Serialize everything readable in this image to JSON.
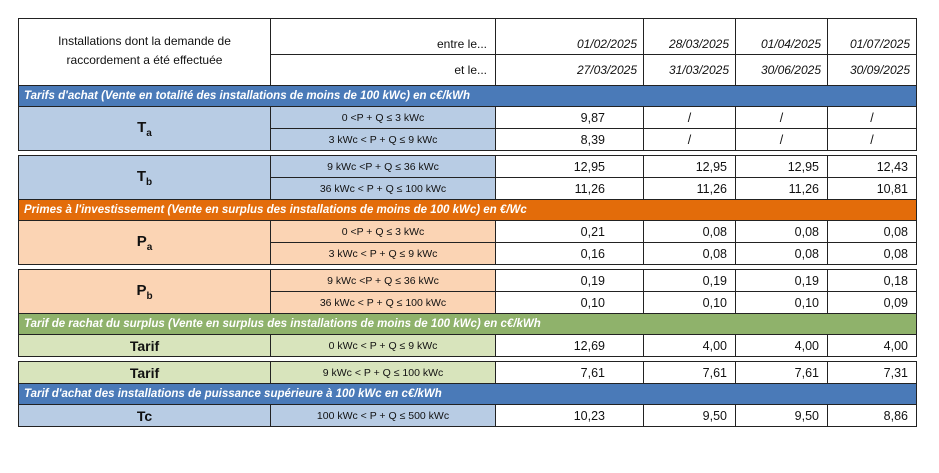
{
  "header": {
    "title": "Installations dont la demande de raccordement a été effectuée",
    "entre_label": "entre le...",
    "et_label": "et le...",
    "periods": [
      {
        "start": "01/02/2025",
        "end": "27/03/2025"
      },
      {
        "start": "28/03/2025",
        "end": "31/03/2025"
      },
      {
        "start": "01/04/2025",
        "end": "30/06/2025"
      },
      {
        "start": "01/07/2025",
        "end": "30/09/2025"
      }
    ]
  },
  "sections": {
    "tarifs_achat": "Tarifs d'achat (Vente en totalité des installations de moins de 100 kWc) en c€/kWh",
    "primes": "Primes à l'investissement (Vente en surplus des installations de moins de 100 kWc) en €/Wc",
    "rachat_surplus": "Tarif de rachat du surplus (Vente en surplus des installations de moins de 100 kWc) en c€/kWh",
    "achat_sup100": "Tarif d'achat des installations de puissance supérieure à 100 kWc en c€/kWh"
  },
  "groups": {
    "ta": {
      "label": "T",
      "sub": "a",
      "rows": [
        {
          "cond": "0 <P + Q ≤ 3 kWc",
          "values": [
            "9,87",
            "/",
            "/",
            "/"
          ]
        },
        {
          "cond": "3  kWc < P + Q ≤ 9 kWc",
          "values": [
            "8,39",
            "/",
            "/",
            "/"
          ]
        }
      ]
    },
    "tb": {
      "label": "T",
      "sub": "b",
      "rows": [
        {
          "cond": "9 kWc <P + Q ≤ 36 kWc",
          "values": [
            "12,95",
            "12,95",
            "12,95",
            "12,43"
          ]
        },
        {
          "cond": "36 kWc < P + Q ≤ 100 kWc",
          "values": [
            "11,26",
            "11,26",
            "11,26",
            "10,81"
          ]
        }
      ]
    },
    "pa": {
      "label": "P",
      "sub": "a",
      "rows": [
        {
          "cond": "0 <P + Q ≤ 3 kWc",
          "values": [
            "0,21",
            "0,08",
            "0,08",
            "0,08"
          ]
        },
        {
          "cond": "3  kWc < P + Q ≤ 9 kWc",
          "values": [
            "0,16",
            "0,08",
            "0,08",
            "0,08"
          ]
        }
      ]
    },
    "pb": {
      "label": "P",
      "sub": "b",
      "rows": [
        {
          "cond": "9 kWc <P + Q ≤ 36 kWc",
          "values": [
            "0,19",
            "0,19",
            "0,19",
            "0,18"
          ]
        },
        {
          "cond": "36 kWc < P + Q ≤ 100 kWc",
          "values": [
            "0,10",
            "0,10",
            "0,10",
            "0,09"
          ]
        }
      ]
    },
    "tarif1": {
      "label": "Tarif",
      "rows": [
        {
          "cond": "0 kWc < P + Q ≤ 9 kWc",
          "values": [
            "12,69",
            "4,00",
            "4,00",
            "4,00"
          ]
        }
      ]
    },
    "tarif2": {
      "label": "Tarif",
      "rows": [
        {
          "cond": "9 kWc < P + Q ≤ 100 kWc",
          "values": [
            "7,61",
            "7,61",
            "7,61",
            "7,31"
          ]
        }
      ]
    },
    "tc": {
      "label": "Tc",
      "rows": [
        {
          "cond": "100 kWc < P + Q ≤ 500 kWc",
          "values": [
            "10,23",
            "9,50",
            "9,50",
            "8,86"
          ]
        }
      ]
    }
  },
  "colors": {
    "blue_header": "#4a7ab8",
    "orange_header": "#e36c0a",
    "green_header": "#8fb26b",
    "blue_fill": "#b8cce4",
    "orange_fill": "#fbd4b4",
    "green_fill": "#d8e4bc"
  }
}
